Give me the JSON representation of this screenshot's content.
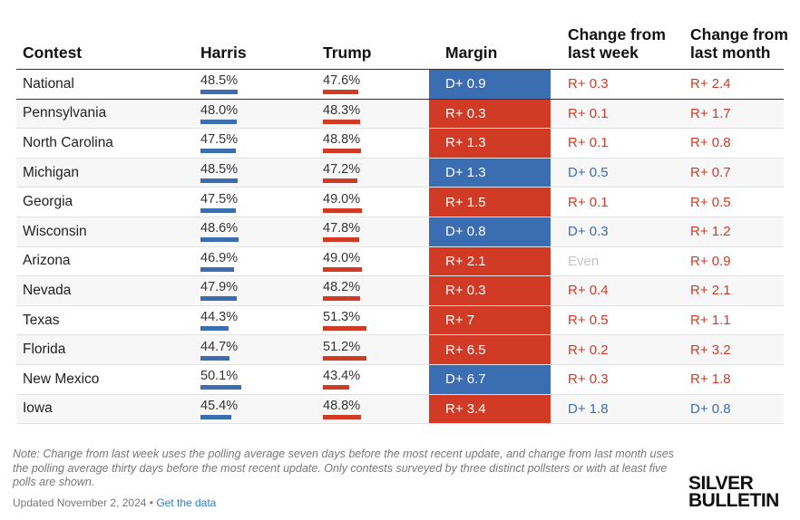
{
  "colors": {
    "dem": "#3b6db3",
    "rep": "#d13b26",
    "even": "#c4c4c4"
  },
  "chart_data": {
    "type": "table",
    "columns": [
      "Contest",
      "Harris",
      "Trump",
      "Margin",
      "Change from last week",
      "Change from last month"
    ],
    "rows": [
      {
        "contest": "National",
        "harris": "48.5%",
        "harris_val": 48.5,
        "trump": "47.6%",
        "trump_val": 47.6,
        "margin": "D+ 0.9",
        "margin_party": "D",
        "week": "R+ 0.3",
        "week_party": "R",
        "month": "R+ 2.4",
        "month_party": "R"
      },
      {
        "contest": "Pennsylvania",
        "harris": "48.0%",
        "harris_val": 48.0,
        "trump": "48.3%",
        "trump_val": 48.3,
        "margin": "R+ 0.3",
        "margin_party": "R",
        "week": "R+ 0.1",
        "week_party": "R",
        "month": "R+ 1.7",
        "month_party": "R"
      },
      {
        "contest": "North Carolina",
        "harris": "47.5%",
        "harris_val": 47.5,
        "trump": "48.8%",
        "trump_val": 48.8,
        "margin": "R+ 1.3",
        "margin_party": "R",
        "week": "R+ 0.1",
        "week_party": "R",
        "month": "R+ 0.8",
        "month_party": "R"
      },
      {
        "contest": "Michigan",
        "harris": "48.5%",
        "harris_val": 48.5,
        "trump": "47.2%",
        "trump_val": 47.2,
        "margin": "D+ 1.3",
        "margin_party": "D",
        "week": "D+ 0.5",
        "week_party": "D",
        "month": "R+ 0.7",
        "month_party": "R"
      },
      {
        "contest": "Georgia",
        "harris": "47.5%",
        "harris_val": 47.5,
        "trump": "49.0%",
        "trump_val": 49.0,
        "margin": "R+ 1.5",
        "margin_party": "R",
        "week": "R+ 0.1",
        "week_party": "R",
        "month": "R+ 0.5",
        "month_party": "R"
      },
      {
        "contest": "Wisconsin",
        "harris": "48.6%",
        "harris_val": 48.6,
        "trump": "47.8%",
        "trump_val": 47.8,
        "margin": "D+ 0.8",
        "margin_party": "D",
        "week": "D+ 0.3",
        "week_party": "D",
        "month": "R+ 1.2",
        "month_party": "R"
      },
      {
        "contest": "Arizona",
        "harris": "46.9%",
        "harris_val": 46.9,
        "trump": "49.0%",
        "trump_val": 49.0,
        "margin": "R+ 2.1",
        "margin_party": "R",
        "week": "Even",
        "week_party": "E",
        "month": "R+ 0.9",
        "month_party": "R"
      },
      {
        "contest": "Nevada",
        "harris": "47.9%",
        "harris_val": 47.9,
        "trump": "48.2%",
        "trump_val": 48.2,
        "margin": "R+ 0.3",
        "margin_party": "R",
        "week": "R+ 0.4",
        "week_party": "R",
        "month": "R+ 2.1",
        "month_party": "R"
      },
      {
        "contest": "Texas",
        "harris": "44.3%",
        "harris_val": 44.3,
        "trump": "51.3%",
        "trump_val": 51.3,
        "margin": "R+ 7",
        "margin_party": "R",
        "week": "R+ 0.5",
        "week_party": "R",
        "month": "R+ 1.1",
        "month_party": "R"
      },
      {
        "contest": "Florida",
        "harris": "44.7%",
        "harris_val": 44.7,
        "trump": "51.2%",
        "trump_val": 51.2,
        "margin": "R+ 6.5",
        "margin_party": "R",
        "week": "R+ 0.2",
        "week_party": "R",
        "month": "R+ 3.2",
        "month_party": "R"
      },
      {
        "contest": "New Mexico",
        "harris": "50.1%",
        "harris_val": 50.1,
        "trump": "43.4%",
        "trump_val": 43.4,
        "margin": "D+ 6.7",
        "margin_party": "D",
        "week": "R+ 0.3",
        "week_party": "R",
        "month": "R+ 1.8",
        "month_party": "R"
      },
      {
        "contest": "Iowa",
        "harris": "45.4%",
        "harris_val": 45.4,
        "trump": "48.8%",
        "trump_val": 48.8,
        "margin": "R+ 3.4",
        "margin_party": "R",
        "week": "D+ 1.8",
        "week_party": "D",
        "month": "D+ 0.8",
        "month_party": "D"
      }
    ]
  },
  "note": "Note: Change from last week uses the polling average seven days before the most recent update, and change from last month uses the polling average thirty days before the most recent update. Only contests surveyed by three distinct pollsters or with at least five polls are shown.",
  "updated": "Updated November 2, 2024 •",
  "data_link": "Get the data",
  "logo_line1": "SILVER",
  "logo_line2": "BULLETIN"
}
